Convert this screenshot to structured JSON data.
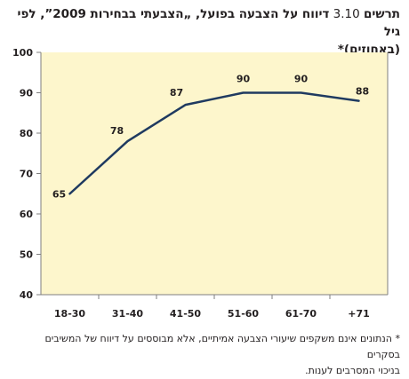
{
  "title": {
    "prefix": "תרשים",
    "number": "3.10",
    "text": "דיווח על הצבעה בפועל, „הצבעתי בבחירות 2009”, לפי גיל",
    "subtitle": "(באחוזים)*"
  },
  "footnote": {
    "marker": "*",
    "line1": "הנתונים אינם משקפים שיעורי הצבעה אמיתיים, אלא מבוססים על דיווח של המשיבים בסקרים",
    "line2": "בניכוי המסרבים לענות."
  },
  "colors": {
    "plot_background": "#fdf6cc",
    "line": "#1f3a60",
    "grid": "#999999",
    "frame": "#7f7f7f",
    "text": "#231f20"
  },
  "chart_data": {
    "type": "line",
    "categories": [
      "18-30",
      "31-40",
      "41-50",
      "51-60",
      "61-70",
      "+71"
    ],
    "series": [
      {
        "values": [
          65,
          78,
          87,
          90,
          90,
          88
        ]
      }
    ],
    "data_labels": [
      "65",
      "78",
      "87",
      "90",
      "90",
      "88"
    ],
    "y_ticks": [
      "40",
      "50",
      "60",
      "70",
      "80",
      "90",
      "100"
    ],
    "ylim": [
      40,
      100
    ],
    "grid": false,
    "legend": "none"
  }
}
